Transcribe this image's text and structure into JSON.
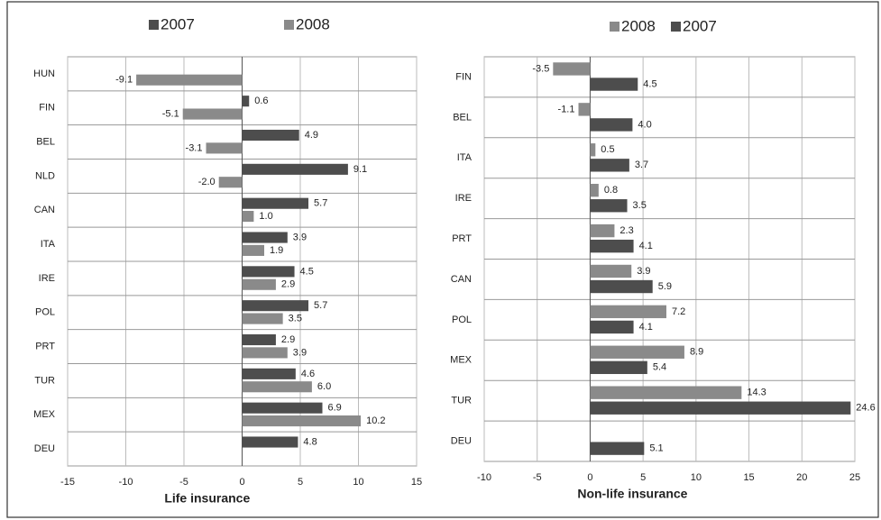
{
  "chart_data": [
    {
      "type": "bar",
      "orientation": "horizontal",
      "xlabel": "Life insurance",
      "categories": [
        "HUN",
        "FIN",
        "BEL",
        "NLD",
        "CAN",
        "ITA",
        "IRE",
        "POL",
        "PRT",
        "TUR",
        "MEX",
        "DEU"
      ],
      "series": [
        {
          "name": "2007",
          "color": "#4d4d4d",
          "values": [
            null,
            0.6,
            4.9,
            9.1,
            5.7,
            3.9,
            4.5,
            5.7,
            2.9,
            4.6,
            6.9,
            4.8
          ],
          "value_labels": [
            null,
            "0.6",
            "4.9",
            "9.1",
            "5.7",
            "3.9",
            "4.5",
            "5.7",
            "2.9",
            "4.6",
            "6.9",
            "4.8"
          ]
        },
        {
          "name": "2008",
          "color": "#8a8a8a",
          "values": [
            -9.1,
            -5.1,
            -3.1,
            -2.0,
            1.0,
            1.9,
            2.9,
            3.5,
            3.9,
            6.0,
            10.2,
            null
          ],
          "value_labels": [
            "-9.1",
            "-5.1",
            "-3.1",
            "-2.0",
            "1.0",
            "1.9",
            "2.9",
            "3.5",
            "3.9",
            "6.0",
            "10.2",
            null
          ]
        }
      ],
      "xlim": [
        -15,
        15
      ],
      "xticks": [
        -15,
        -10,
        -5,
        0,
        5,
        10,
        15
      ],
      "grid": true
    },
    {
      "type": "bar",
      "orientation": "horizontal",
      "xlabel": "Non-life insurance",
      "categories": [
        "FIN",
        "BEL",
        "ITA",
        "IRE",
        "PRT",
        "CAN",
        "POL",
        "MEX",
        "TUR",
        "DEU"
      ],
      "series": [
        {
          "name": "2008",
          "color": "#8a8a8a",
          "values": [
            -3.5,
            -1.1,
            0.5,
            0.8,
            2.3,
            3.9,
            7.2,
            8.9,
            14.3,
            null
          ],
          "value_labels": [
            "-3.5",
            "-1.1",
            "0.5",
            "0.8",
            "2.3",
            "3.9",
            "7.2",
            "8.9",
            "14.3",
            null
          ]
        },
        {
          "name": "2007",
          "color": "#4d4d4d",
          "values": [
            4.5,
            4.0,
            3.7,
            3.5,
            4.1,
            5.9,
            4.1,
            5.4,
            24.6,
            5.1
          ],
          "value_labels": [
            "4.5",
            "4.0",
            "3.7",
            "3.5",
            "4.1",
            "5.9",
            "4.1",
            "5.4",
            "24.6",
            "5.1"
          ]
        }
      ],
      "xlim": [
        -10,
        25
      ],
      "xticks": [
        -10,
        -5,
        0,
        5,
        10,
        15,
        20,
        25
      ],
      "grid": true
    }
  ]
}
